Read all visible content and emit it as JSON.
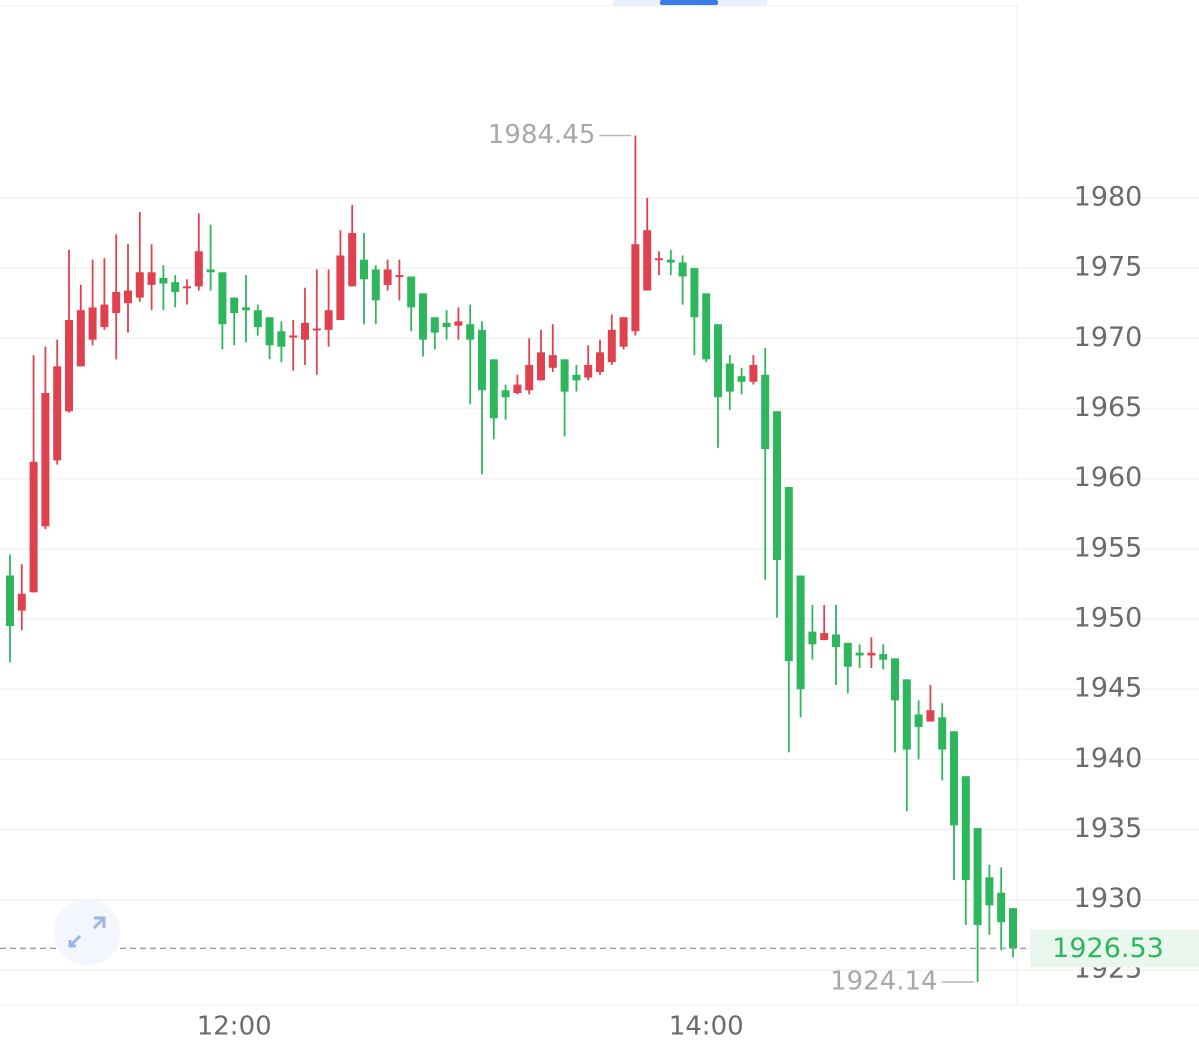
{
  "chart_data": {
    "type": "candlestick",
    "categories": [
      null,
      null,
      null,
      null,
      null,
      null,
      null,
      null,
      null,
      null,
      null,
      null,
      null,
      null,
      null,
      null,
      null,
      null,
      null,
      "12:00",
      null,
      null,
      null,
      null,
      null,
      null,
      null,
      null,
      null,
      null,
      null,
      null,
      null,
      null,
      null,
      null,
      null,
      null,
      null,
      null,
      null,
      null,
      null,
      null,
      null,
      null,
      null,
      null,
      null,
      null,
      null,
      null,
      null,
      null,
      null,
      null,
      null,
      null,
      null,
      "14:00",
      null,
      null,
      null,
      null,
      null,
      null,
      null,
      null,
      null,
      null,
      null,
      null,
      null,
      null,
      null,
      null,
      null,
      null,
      null,
      null,
      null,
      null,
      null,
      null,
      null,
      null
    ],
    "open": [
      1953.1,
      1950.6,
      1951.9,
      1956.6,
      1961.3,
      1964.8,
      1968.0,
      1969.9,
      1970.8,
      1971.8,
      1972.5,
      1972.9,
      1973.8,
      1974.3,
      1974.0,
      1973.6,
      1973.7,
      1974.9,
      1974.7,
      1972.9,
      1972.2,
      1972.0,
      1971.5,
      1970.5,
      1970.1,
      1969.9,
      1970.6,
      1970.6,
      1971.3,
      1973.7,
      1975.6,
      1974.9,
      1973.8,
      1974.4,
      1974.4,
      1973.2,
      1971.5,
      1971.1,
      1970.9,
      1971.0,
      1970.6,
      1968.5,
      1966.3,
      1966.1,
      1966.3,
      1967.0,
      1967.9,
      1968.5,
      1967.4,
      1967.2,
      1967.6,
      1968.3,
      1969.4,
      1970.5,
      1973.4,
      1975.6,
      1975.6,
      1975.4,
      1975.0,
      1973.2,
      1971.0,
      1968.2,
      1967.3,
      1966.9,
      1967.4,
      1964.8,
      1959.4,
      1953.1,
      1949.1,
      1948.5,
      1948.9,
      1948.3,
      1947.6,
      1947.4,
      1947.5,
      1947.2,
      1945.7,
      1943.2,
      1942.7,
      1943.0,
      1942.0,
      1938.8,
      1935.1,
      1931.6,
      1930.5,
      1929.4
    ],
    "high": [
      1954.6,
      1953.9,
      1968.8,
      1969.4,
      1969.9,
      1976.3,
      1973.8,
      1975.6,
      1975.7,
      1977.4,
      1976.7,
      1979.0,
      1976.7,
      1975.2,
      1974.5,
      1974.2,
      1978.9,
      1978.1,
      1974.7,
      1972.9,
      1974.5,
      1972.4,
      1971.5,
      1971.2,
      1971.3,
      1973.6,
      1974.9,
      1974.9,
      1977.7,
      1979.5,
      1977.5,
      1975.2,
      1975.6,
      1975.6,
      1974.4,
      1973.2,
      1971.5,
      1972.0,
      1972.2,
      1972.4,
      1971.2,
      1968.5,
      1966.7,
      1967.4,
      1970.0,
      1970.6,
      1971.0,
      1968.5,
      1968.1,
      1969.5,
      1969.9,
      1971.7,
      1971.5,
      1984.45,
      1980.0,
      1976.2,
      1976.3,
      1975.9,
      1975.0,
      1973.2,
      1971.0,
      1968.8,
      1967.9,
      1968.8,
      1969.3,
      1964.8,
      1959.4,
      1953.1,
      1951.0,
      1951.0,
      1951.0,
      1948.3,
      1948.2,
      1948.7,
      1948.2,
      1947.2,
      1945.7,
      1944.2,
      1945.3,
      1944.0,
      1942.0,
      1938.8,
      1935.1,
      1932.5,
      1932.3,
      1929.4
    ],
    "low": [
      1946.9,
      1949.2,
      1951.9,
      1956.4,
      1961.0,
      1964.7,
      1968.0,
      1969.5,
      1970.6,
      1968.5,
      1970.4,
      1972.6,
      1972.0,
      1972.0,
      1972.2,
      1972.4,
      1973.4,
      1973.4,
      1969.2,
      1969.5,
      1969.7,
      1970.2,
      1968.5,
      1968.3,
      1967.7,
      1968.1,
      1967.4,
      1969.4,
      1971.3,
      1973.7,
      1971.0,
      1971.0,
      1973.4,
      1972.7,
      1970.5,
      1968.7,
      1969.2,
      1969.9,
      1969.9,
      1965.3,
      1960.3,
      1962.8,
      1964.2,
      1966.0,
      1966.0,
      1967.0,
      1967.6,
      1963.0,
      1966.2,
      1967.0,
      1967.4,
      1968.1,
      1969.2,
      1970.2,
      1973.4,
      1974.5,
      1974.5,
      1972.4,
      1968.8,
      1968.3,
      1962.2,
      1964.9,
      1966.0,
      1966.7,
      1952.8,
      1950.1,
      1940.5,
      1943.0,
      1947.1,
      1948.5,
      1945.3,
      1944.7,
      1946.5,
      1946.5,
      1946.4,
      1940.5,
      1936.3,
      1940.0,
      1942.7,
      1938.5,
      1931.4,
      1928.2,
      1924.14,
      1927.5,
      1926.4,
      1925.9
    ],
    "close": [
      1949.5,
      1951.8,
      1961.2,
      1966.1,
      1968.0,
      1971.3,
      1972.0,
      1972.2,
      1972.4,
      1973.3,
      1973.4,
      1974.7,
      1974.7,
      1973.9,
      1973.3,
      1973.7,
      1976.2,
      1974.7,
      1971.0,
      1971.8,
      1972.0,
      1970.8,
      1969.5,
      1969.4,
      1970.2,
      1971.1,
      1970.7,
      1972.0,
      1975.9,
      1977.5,
      1974.2,
      1972.7,
      1974.9,
      1974.5,
      1972.2,
      1969.9,
      1970.4,
      1970.8,
      1971.2,
      1969.9,
      1966.3,
      1964.3,
      1965.8,
      1966.7,
      1968.1,
      1969.0,
      1968.8,
      1966.2,
      1967.0,
      1968.1,
      1969.0,
      1970.6,
      1971.5,
      1976.7,
      1977.7,
      1975.7,
      1975.4,
      1974.4,
      1971.5,
      1968.5,
      1965.8,
      1966.2,
      1966.9,
      1968.1,
      1962.1,
      1954.2,
      1947.0,
      1945.0,
      1948.2,
      1949.0,
      1948.0,
      1946.6,
      1947.4,
      1947.6,
      1947.1,
      1944.2,
      1940.7,
      1942.3,
      1943.5,
      1940.7,
      1935.3,
      1931.4,
      1928.2,
      1929.6,
      1928.4,
      1926.53
    ],
    "up_color": "#e0414f",
    "down_color": "#2eb65d",
    "ylim": [
      1922.5,
      1994.1
    ],
    "yticks": [
      1925,
      1930,
      1935,
      1940,
      1945,
      1950,
      1955,
      1960,
      1965,
      1970,
      1975,
      1980
    ],
    "grid": true,
    "high_marker": 1984.45,
    "low_marker": 1924.14,
    "last_price": 1926.53
  }
}
